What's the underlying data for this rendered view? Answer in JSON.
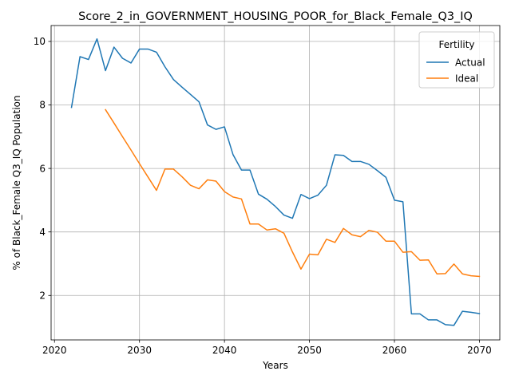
{
  "chart_data": {
    "type": "line",
    "title": "Score_2_in_GOVERNMENT_HOUSING_POOR_for_Black_Female_Q3_IQ",
    "xlabel": "Years",
    "ylabel": "% of Black_Female Q3_IQ Population",
    "xlim": [
      2019.6,
      2072.4
    ],
    "ylim": [
      0.6,
      10.5
    ],
    "xticks": [
      2020,
      2030,
      2040,
      2050,
      2060,
      2070
    ],
    "yticks": [
      2,
      4,
      6,
      8,
      10
    ],
    "grid": true,
    "legend": {
      "title": "Fertility",
      "position": "top-right"
    },
    "series": [
      {
        "name": "Actual",
        "color": "#1f77b4",
        "x": [
          2022,
          2023,
          2024,
          2025,
          2026,
          2027,
          2028,
          2029,
          2030,
          2031,
          2032,
          2033,
          2034,
          2035,
          2036,
          2037,
          2038,
          2039,
          2040,
          2041,
          2042,
          2043,
          2044,
          2045,
          2046,
          2047,
          2048,
          2049,
          2050,
          2051,
          2052,
          2053,
          2054,
          2055,
          2056,
          2057,
          2058,
          2059,
          2060,
          2061,
          2062,
          2063,
          2064,
          2065,
          2066,
          2067,
          2068,
          2069,
          2070
        ],
        "values": [
          7.92,
          9.52,
          9.43,
          10.08,
          9.08,
          9.82,
          9.47,
          9.32,
          9.76,
          9.76,
          9.66,
          9.2,
          8.8,
          8.56,
          8.33,
          8.1,
          7.37,
          7.23,
          7.31,
          6.44,
          5.95,
          5.95,
          5.19,
          5.03,
          4.8,
          4.53,
          4.43,
          5.18,
          5.05,
          5.16,
          5.47,
          6.43,
          6.41,
          6.22,
          6.22,
          6.13,
          5.93,
          5.72,
          5.0,
          4.95,
          1.42,
          1.42,
          1.23,
          1.23,
          1.08,
          1.06,
          1.5,
          1.47,
          1.43
        ]
      },
      {
        "name": "Ideal",
        "color": "#ff7f0e",
        "x": [
          2026,
          2027,
          2028,
          2029,
          2030,
          2031,
          2032,
          2033,
          2034,
          2035,
          2036,
          2037,
          2038,
          2039,
          2040,
          2041,
          2042,
          2043,
          2044,
          2045,
          2046,
          2047,
          2048,
          2049,
          2050,
          2051,
          2052,
          2053,
          2054,
          2055,
          2056,
          2057,
          2058,
          2059,
          2060,
          2061,
          2062,
          2063,
          2064,
          2065,
          2066,
          2067,
          2068,
          2069,
          2070
        ],
        "values": [
          7.85,
          7.43,
          7.0,
          6.58,
          6.15,
          5.73,
          5.31,
          5.98,
          5.98,
          5.74,
          5.47,
          5.36,
          5.64,
          5.6,
          5.27,
          5.1,
          5.04,
          4.25,
          4.25,
          4.06,
          4.1,
          3.96,
          3.37,
          2.83,
          3.3,
          3.28,
          3.77,
          3.67,
          4.11,
          3.91,
          3.85,
          4.05,
          3.99,
          3.71,
          3.71,
          3.36,
          3.38,
          3.11,
          3.12,
          2.68,
          2.69,
          2.99,
          2.68,
          2.62,
          2.6
        ]
      }
    ]
  }
}
